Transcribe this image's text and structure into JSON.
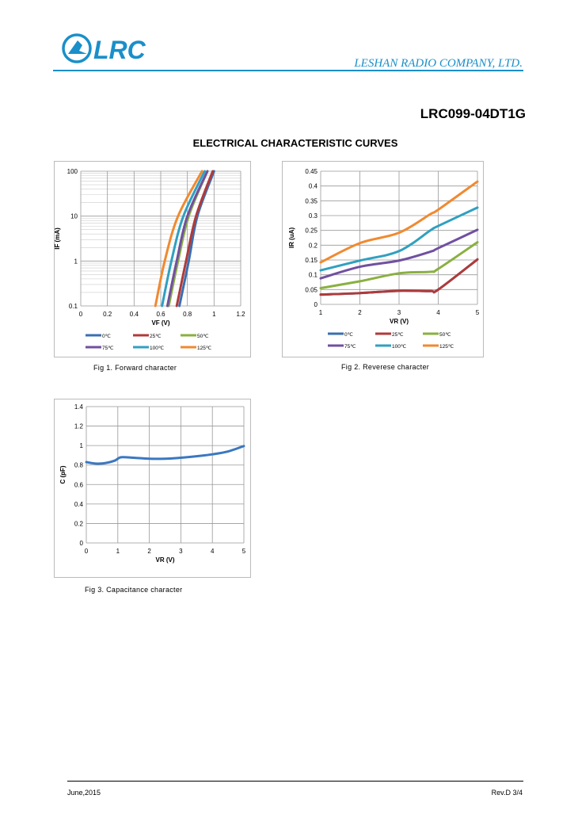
{
  "header": {
    "logo_text": "LRC",
    "company": "LESHAN RADIO COMPANY, LTD.",
    "brand_color": "#1a8fc9"
  },
  "part_number": "LRC099-04DT1G",
  "section_title": "ELECTRICAL CHARACTERISTIC CURVES",
  "captions": [
    "Fig 1. Forward  character",
    "Fig 2. Reverese  character",
    "Fig 3. Capacitance character"
  ],
  "footer": {
    "date": "June,2015",
    "revision": "Rev.D 3/4"
  },
  "chart_data": [
    {
      "type": "line",
      "title": "",
      "xlabel": "VF (V)",
      "ylabel": "IF (mA)",
      "yscale": "log",
      "xlim": [
        0,
        1.2
      ],
      "ylim": [
        0.1,
        100
      ],
      "xticks": [
        "0",
        "0.2",
        "0.4",
        "0.6",
        "0.8",
        "1",
        "1.2"
      ],
      "yticks": [
        "0.1",
        "1",
        "10",
        "100"
      ],
      "legend": "bottom",
      "grid": true,
      "y": [
        0.1,
        1,
        10,
        100
      ],
      "series": [
        {
          "name": "0℃",
          "color": "#3a6fb0",
          "x": [
            0.74,
            0.81,
            0.875,
            1.0
          ]
        },
        {
          "name": "25℃",
          "color": "#b03a3a",
          "x": [
            0.72,
            0.79,
            0.865,
            0.99
          ]
        },
        {
          "name": "50℃",
          "color": "#8ab040",
          "x": [
            0.66,
            0.73,
            0.81,
            0.95
          ]
        },
        {
          "name": "75℃",
          "color": "#7050a0",
          "x": [
            0.65,
            0.72,
            0.8,
            0.95
          ]
        },
        {
          "name": "100℃",
          "color": "#30a0c0",
          "x": [
            0.61,
            0.68,
            0.77,
            0.93
          ]
        },
        {
          "name": "125℃",
          "color": "#f08a30",
          "x": [
            0.56,
            0.63,
            0.73,
            0.91
          ]
        }
      ]
    },
    {
      "type": "line",
      "title": "",
      "xlabel": "VR (V)",
      "ylabel": "IR (uA)",
      "xlim": [
        1,
        5
      ],
      "ylim": [
        0,
        0.45
      ],
      "xticks": [
        "1",
        "2",
        "3",
        "4",
        "5"
      ],
      "yticks": [
        "0",
        "0.05",
        "0.1",
        "0.15",
        "0.2",
        "0.25",
        "0.3",
        "0.35",
        "0.4",
        "0.45"
      ],
      "legend": "bottom",
      "grid": true,
      "x": [
        1,
        2,
        3,
        3.8,
        4,
        5
      ],
      "series": [
        {
          "name": "0℃",
          "color": "#3a6fb0",
          "values": [
            0.033,
            0.038,
            0.046,
            0.045,
            0.05,
            0.152
          ]
        },
        {
          "name": "25℃",
          "color": "#b03a3a",
          "values": [
            0.033,
            0.038,
            0.046,
            0.045,
            0.05,
            0.152
          ]
        },
        {
          "name": "50℃",
          "color": "#8ab040",
          "values": [
            0.055,
            0.078,
            0.105,
            0.11,
            0.12,
            0.21
          ]
        },
        {
          "name": "75℃",
          "color": "#7050a0",
          "values": [
            0.088,
            0.127,
            0.148,
            0.178,
            0.19,
            0.252
          ]
        },
        {
          "name": "100℃",
          "color": "#30a0c0",
          "values": [
            0.115,
            0.148,
            0.18,
            0.25,
            0.265,
            0.327
          ]
        },
        {
          "name": "125℃",
          "color": "#f08a30",
          "values": [
            0.142,
            0.207,
            0.242,
            0.305,
            0.32,
            0.415
          ]
        }
      ]
    },
    {
      "type": "line",
      "title": "",
      "xlabel": "VR (V)",
      "ylabel": "C (pF)",
      "xlim": [
        0,
        5
      ],
      "ylim": [
        0,
        1.4
      ],
      "xticks": [
        "0",
        "1",
        "2",
        "3",
        "4",
        "5"
      ],
      "yticks": [
        "0",
        "0.2",
        "0.4",
        "0.6",
        "0.8",
        "1",
        "1.2",
        "1.4"
      ],
      "grid": true,
      "series": [
        {
          "name": "C",
          "color": "#3a78c0",
          "x": [
            0,
            0.3,
            0.6,
            0.9,
            1.1,
            1.5,
            2,
            2.5,
            3,
            3.5,
            4,
            4.5,
            5
          ],
          "values": [
            0.83,
            0.815,
            0.82,
            0.845,
            0.88,
            0.875,
            0.865,
            0.865,
            0.875,
            0.89,
            0.91,
            0.94,
            0.995
          ]
        }
      ]
    }
  ]
}
